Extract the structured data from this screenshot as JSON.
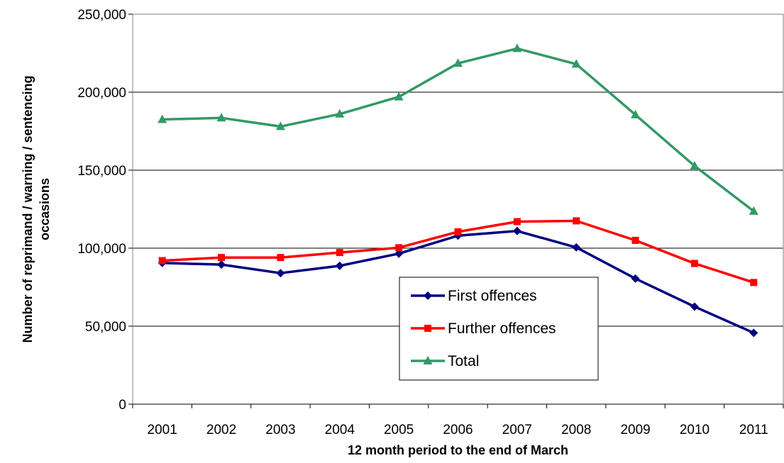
{
  "chart_data": {
    "type": "line",
    "title": "",
    "xlabel": "12 month period to the end of March",
    "ylabel": "Number of reprimand / warning / sentencing occasions",
    "ylabel_lines": [
      "Number of reprimand / warning / sentencing",
      "occasions"
    ],
    "categories": [
      "2001",
      "2002",
      "2003",
      "2004",
      "2005",
      "2006",
      "2007",
      "2008",
      "2009",
      "2010",
      "2011"
    ],
    "ylim": [
      0,
      250000
    ],
    "yticks": [
      0,
      50000,
      100000,
      150000,
      200000,
      250000
    ],
    "ytick_labels": [
      "0",
      "50,000",
      "100,000",
      "150,000",
      "200,000",
      "250,000"
    ],
    "grid": true,
    "legend_position": "inside-bottom-center",
    "series": [
      {
        "name": "First offences",
        "color": "#000080",
        "marker": "diamond",
        "values": [
          90500,
          89500,
          84000,
          88700,
          96500,
          108000,
          111000,
          100500,
          80500,
          62500,
          45700
        ]
      },
      {
        "name": "Further offences",
        "color": "#ff0000",
        "marker": "square",
        "values": [
          92000,
          94000,
          94000,
          97200,
          100300,
          110500,
          117000,
          117500,
          105000,
          90200,
          78000
        ]
      },
      {
        "name": "Total",
        "color": "#339966",
        "marker": "triangle",
        "values": [
          182500,
          183500,
          178000,
          186000,
          197000,
          218500,
          228000,
          218000,
          185500,
          152700,
          123700
        ]
      }
    ]
  }
}
